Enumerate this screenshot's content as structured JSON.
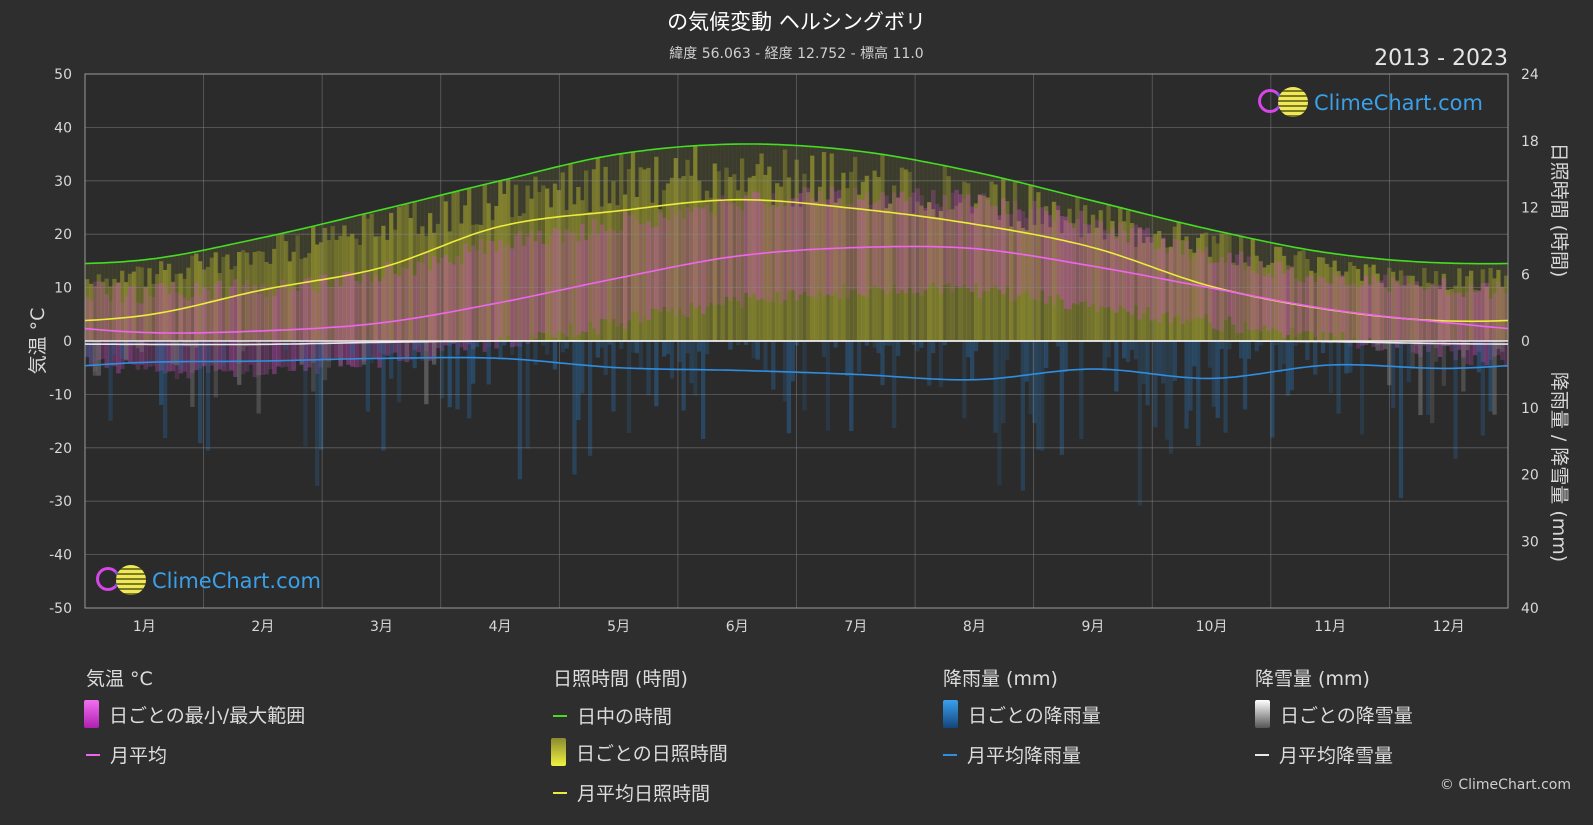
{
  "header": {
    "title": "の気候変動 ヘルシングボリ",
    "subtitle": "緯度 56.063 - 経度 12.752 - 標高 11.0",
    "years": "2013 - 2023"
  },
  "logo_text": "ClimeChart.com",
  "copyright": "© ClimeChart.com",
  "chart_data": {
    "type": "line",
    "categories": [
      "1月",
      "2月",
      "3月",
      "4月",
      "5月",
      "6月",
      "7月",
      "8月",
      "9月",
      "10月",
      "11月",
      "12月"
    ],
    "axes": {
      "left": {
        "label": "気温 °C",
        "min": -50,
        "max": 50,
        "ticks": [
          50,
          40,
          30,
          20,
          10,
          0,
          -10,
          -20,
          -30,
          -40,
          -50
        ]
      },
      "right_top": {
        "label": "日照時間 (時間)",
        "min": 0,
        "max": 24,
        "ticks": [
          24,
          18,
          12,
          6,
          0
        ]
      },
      "right_bottom": {
        "label": "降雨量 / 降雪量 (mm)",
        "min": 0,
        "max": 40,
        "ticks": [
          10,
          20,
          30,
          40
        ]
      }
    },
    "series": [
      {
        "name": "日中の時間",
        "axis": "sunshine_hours",
        "color": "#44dd22",
        "values": [
          7.3,
          9.3,
          11.8,
          14.4,
          16.8,
          17.7,
          17.1,
          15.2,
          12.6,
          10.0,
          7.9,
          7.0
        ]
      },
      {
        "name": "月平均日照時間",
        "axis": "sunshine_hours",
        "color": "#ecec3a",
        "values": [
          2.3,
          4.6,
          6.6,
          10.3,
          11.7,
          12.7,
          11.9,
          10.5,
          8.4,
          4.9,
          2.8,
          1.8
        ]
      },
      {
        "name": "月平均",
        "axis": "temperature_c",
        "color": "#ee66ee",
        "values": [
          1.6,
          1.9,
          3.4,
          7.2,
          11.8,
          15.9,
          17.5,
          17.3,
          14.0,
          9.9,
          5.9,
          3.4
        ]
      },
      {
        "name": "月平均降雨量",
        "axis": "precipitation_mm",
        "color": "#2f8ee0",
        "values": [
          3.2,
          3.0,
          2.6,
          2.6,
          4.0,
          4.4,
          5.0,
          5.8,
          4.2,
          5.6,
          3.6,
          4.1
        ]
      },
      {
        "name": "月平均降雪量",
        "axis": "precipitation_mm",
        "color": "#e8e8e8",
        "values": [
          0.5,
          0.5,
          0.2,
          0.0,
          0.0,
          0.0,
          0.0,
          0.0,
          0.0,
          0.0,
          0.1,
          0.4
        ]
      }
    ],
    "daily_bands": {
      "temperature_min": [
        -4,
        -4,
        -2,
        1,
        5,
        9,
        11,
        11,
        8,
        5,
        2,
        -1
      ],
      "temperature_max": [
        7,
        8,
        11,
        16,
        20,
        24,
        25,
        24,
        20,
        14,
        10,
        8
      ],
      "sunshine_range_max": [
        6.5,
        9,
        11.5,
        14,
        15.5,
        16,
        15.5,
        14,
        12,
        9.5,
        7,
        6
      ]
    },
    "grid": true
  },
  "legend": {
    "groups": [
      {
        "title": "気温 °C",
        "items": [
          {
            "label": "日ごとの最小/最大範囲",
            "type": "box",
            "color": "#e040e0"
          },
          {
            "label": "月平均",
            "type": "line",
            "color": "#ee66ee"
          }
        ]
      },
      {
        "title": "日照時間 (時間)",
        "items": [
          {
            "label": "日中の時間",
            "type": "line",
            "color": "#44dd22"
          },
          {
            "label": "日ごとの日照時間",
            "type": "box",
            "color": "#d8d83a"
          },
          {
            "label": "月平均日照時間",
            "type": "line",
            "color": "#ecec3a"
          }
        ]
      },
      {
        "title": "降雨量 (mm)",
        "items": [
          {
            "label": "日ごとの降雨量",
            "type": "box",
            "color": "#2f8ee0"
          },
          {
            "label": "月平均降雨量",
            "type": "line",
            "color": "#2f8ee0"
          }
        ]
      },
      {
        "title": "降雪量 (mm)",
        "items": [
          {
            "label": "日ごとの降雪量",
            "type": "box",
            "color": "#e8e8e8"
          },
          {
            "label": "月平均降雪量",
            "type": "line",
            "color": "#e8e8e8"
          }
        ]
      }
    ]
  }
}
